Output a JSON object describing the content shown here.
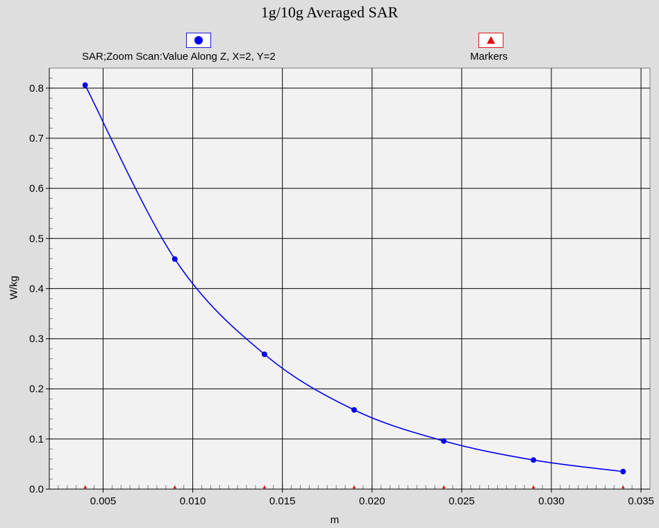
{
  "colors": {
    "series": "#0000ee",
    "markers": "#e01010",
    "grid": "#000000",
    "plot_bg": "#f2f2f2",
    "window_bg": "#dedede"
  },
  "legend": {
    "series_icon": "circle-marker-icon",
    "markers_icon": "triangle-marker-icon",
    "series_label": "SAR;Zoom Scan:Value Along Z, X=2, Y=2",
    "markers_label": "Markers"
  },
  "chart_data": {
    "type": "line",
    "title": "1g/10g Averaged SAR",
    "xlabel": "m",
    "ylabel": "W/kg",
    "xlim": [
      0.002,
      0.0355
    ],
    "ylim": [
      0.0,
      0.84
    ],
    "grid": true,
    "legend_position": "top",
    "xticks": [
      0.005,
      0.01,
      0.015,
      0.02,
      0.025,
      0.03,
      0.035
    ],
    "xtick_labels": [
      "0.005",
      "0.010",
      "0.015",
      "0.020",
      "0.025",
      "0.030",
      "0.035"
    ],
    "yticks": [
      0.0,
      0.1,
      0.2,
      0.3,
      0.4,
      0.5,
      0.6,
      0.7,
      0.8
    ],
    "ytick_labels": [
      "0.0",
      "0.1",
      "0.2",
      "0.3",
      "0.4",
      "0.5",
      "0.6",
      "0.7",
      "0.8"
    ],
    "series": [
      {
        "name": "SAR;Zoom Scan:Value Along Z, X=2, Y=2",
        "x": [
          0.004,
          0.009,
          0.014,
          0.019,
          0.024,
          0.029,
          0.034
        ],
        "y": [
          0.806,
          0.459,
          0.269,
          0.158,
          0.096,
          0.058,
          0.035
        ]
      },
      {
        "name": "Markers",
        "x": [
          0.004,
          0.009,
          0.014,
          0.019,
          0.024,
          0.029,
          0.034
        ],
        "y": [
          0,
          0,
          0,
          0,
          0,
          0,
          0
        ]
      }
    ]
  }
}
